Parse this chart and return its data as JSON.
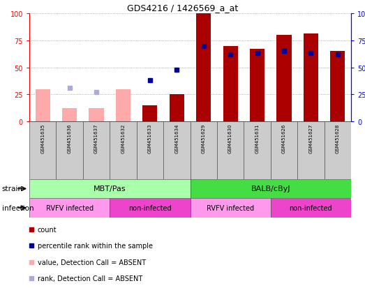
{
  "title": "GDS4216 / 1426569_a_at",
  "samples": [
    "GSM451635",
    "GSM451636",
    "GSM451637",
    "GSM451632",
    "GSM451633",
    "GSM451634",
    "GSM451629",
    "GSM451630",
    "GSM451631",
    "GSM451626",
    "GSM451627",
    "GSM451628"
  ],
  "count_values": [
    0,
    0,
    0,
    0,
    15,
    25,
    100,
    70,
    67,
    80,
    81,
    65
  ],
  "rank_values": [
    0,
    0,
    0,
    0,
    38,
    48,
    70,
    62,
    63,
    65,
    63,
    62
  ],
  "count_absent": [
    30,
    12,
    12,
    30,
    0,
    0,
    0,
    0,
    0,
    0,
    0,
    0
  ],
  "rank_absent": [
    0,
    31,
    27,
    0,
    0,
    0,
    0,
    0,
    0,
    0,
    0,
    0
  ],
  "absent_flags": [
    true,
    true,
    true,
    true,
    false,
    false,
    false,
    false,
    false,
    false,
    false,
    false
  ],
  "strain_groups": [
    {
      "label": "MBT/Pas",
      "start": 0,
      "end": 6,
      "color": "#AAFFAA"
    },
    {
      "label": "BALB/cByJ",
      "start": 6,
      "end": 12,
      "color": "#44DD44"
    }
  ],
  "infection_colors": [
    "#FF99EE",
    "#EE44CC",
    "#FF99EE",
    "#EE44CC"
  ],
  "infection_groups": [
    {
      "label": "RVFV infected",
      "start": 0,
      "end": 3
    },
    {
      "label": "non-infected",
      "start": 3,
      "end": 6
    },
    {
      "label": "RVFV infected",
      "start": 6,
      "end": 9
    },
    {
      "label": "non-infected",
      "start": 9,
      "end": 12
    }
  ],
  "bar_color_present": "#AA0000",
  "bar_color_absent": "#FFAAAA",
  "rank_color_present": "#000099",
  "rank_color_absent": "#AAAADD",
  "ylim": [
    0,
    100
  ],
  "yticks": [
    0,
    25,
    50,
    75,
    100
  ],
  "bg_color": "#FFFFFF",
  "grid_color": "#999999",
  "legend_items": [
    {
      "color": "#AA0000",
      "label": "count"
    },
    {
      "color": "#000099",
      "label": "percentile rank within the sample"
    },
    {
      "color": "#FFAAAA",
      "label": "value, Detection Call = ABSENT"
    },
    {
      "color": "#AAAADD",
      "label": "rank, Detection Call = ABSENT"
    }
  ]
}
